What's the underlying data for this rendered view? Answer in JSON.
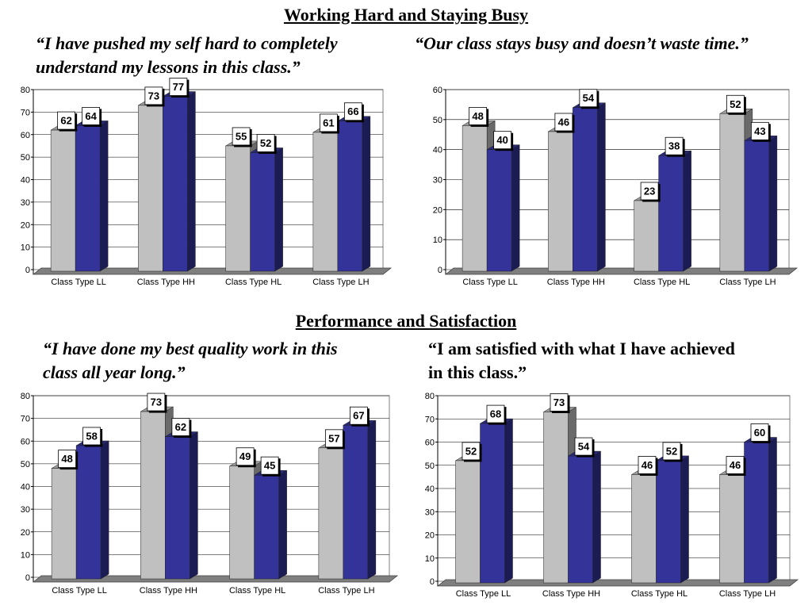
{
  "sections": {
    "top_heading": "Working Hard and Staying Busy",
    "bottom_heading": "Performance and Satisfaction"
  },
  "quotes": [
    {
      "lines": [
        "“I have pushed my self hard to completely",
        "understand my lessons in this class.”"
      ]
    },
    {
      "lines": [
        "“Our class stays busy and doesn’t waste time.”"
      ]
    },
    {
      "lines": [
        "“I have done my best quality work in this",
        "class all year long.”"
      ]
    },
    {
      "lines": [
        "“I am satisfied with what I have achieved",
        "in this class.”"
      ]
    }
  ],
  "colors": {
    "series_a": "#c0c0c0",
    "series_b": "#333399",
    "floor": "#7f7f7f",
    "gridline": "#000000"
  },
  "chart_data": [
    {
      "type": "bar",
      "categories": [
        "Class Type LL",
        "Class Type HH",
        "Class Type HL",
        "Class Type LH"
      ],
      "series": [
        {
          "values": [
            62,
            73,
            55,
            61
          ]
        },
        {
          "values": [
            64,
            77,
            52,
            66
          ]
        }
      ],
      "yticks": [
        "0",
        "10",
        "20",
        "30",
        "40",
        "50",
        "60",
        "70",
        "80"
      ],
      "ylim": [
        0,
        80
      ],
      "grid": true,
      "legend": "none"
    },
    {
      "type": "bar",
      "categories": [
        "Class Type LL",
        "Class Type HH",
        "Class Type HL",
        "Class Type LH"
      ],
      "series": [
        {
          "values": [
            48,
            46,
            23,
            52
          ]
        },
        {
          "values": [
            40,
            54,
            38,
            43
          ]
        }
      ],
      "yticks": [
        "0",
        "10",
        "20",
        "30",
        "40",
        "50",
        "60"
      ],
      "ylim": [
        0,
        60
      ],
      "grid": true,
      "legend": "none"
    },
    {
      "type": "bar",
      "categories": [
        "Class Type LL",
        "Class Type HH",
        "Class Type HL",
        "Class Type LH"
      ],
      "series": [
        {
          "values": [
            48,
            73,
            49,
            57
          ]
        },
        {
          "values": [
            58,
            62,
            45,
            67
          ]
        }
      ],
      "yticks": [
        "0",
        "10",
        "20",
        "30",
        "40",
        "50",
        "60",
        "70",
        "80"
      ],
      "ylim": [
        0,
        80
      ],
      "grid": true,
      "legend": "none"
    },
    {
      "type": "bar",
      "categories": [
        "Class Type LL",
        "Class Type HH",
        "Class Type HL",
        "Class Type LH"
      ],
      "series": [
        {
          "values": [
            52,
            73,
            46,
            46
          ]
        },
        {
          "values": [
            68,
            54,
            52,
            60
          ]
        }
      ],
      "yticks": [
        "0",
        "10",
        "20",
        "30",
        "40",
        "50",
        "60",
        "70",
        "80"
      ],
      "ylim": [
        0,
        80
      ],
      "grid": true,
      "legend": "none"
    }
  ]
}
